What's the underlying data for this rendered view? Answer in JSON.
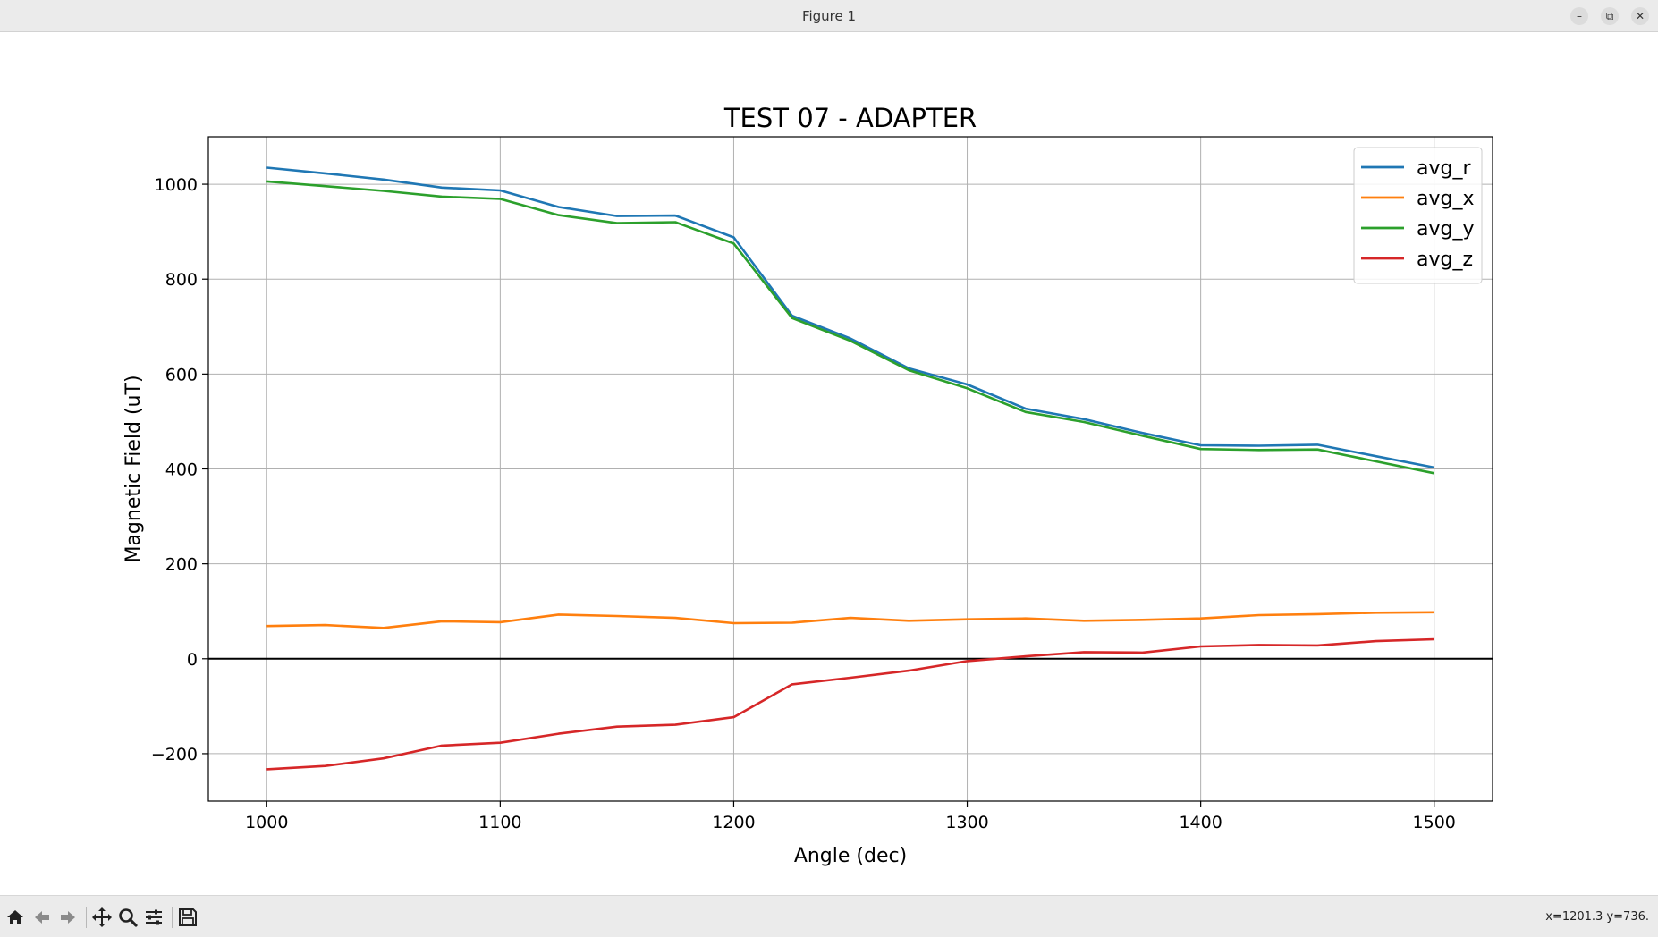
{
  "window": {
    "title": "Figure 1",
    "minimize_glyph": "–",
    "restore_glyph": "⧉",
    "close_glyph": "✕"
  },
  "toolbar": {
    "icons": [
      "home-icon",
      "back-arrow-icon",
      "forward-arrow-icon",
      "pan-icon",
      "zoom-icon",
      "configure-subplots-icon",
      "save-icon"
    ],
    "coords_text": "x=1201.3 y=736."
  },
  "chart_data": {
    "type": "line",
    "title": "TEST 07 - ADAPTER",
    "xlabel": "Angle (dec)",
    "ylabel": "Magnetic Field (uT)",
    "xlim": [
      975,
      1525
    ],
    "ylim": [
      -300,
      1100
    ],
    "xticks": [
      1000,
      1100,
      1200,
      1300,
      1400,
      1500
    ],
    "yticks": [
      -200,
      0,
      200,
      400,
      600,
      800,
      1000
    ],
    "grid": true,
    "zero_line": true,
    "legend_position": "top-right",
    "x": [
      1000,
      1025,
      1050,
      1075,
      1100,
      1125,
      1150,
      1175,
      1200,
      1225,
      1250,
      1275,
      1300,
      1325,
      1350,
      1375,
      1400,
      1425,
      1450,
      1475,
      1500
    ],
    "series": [
      {
        "name": "avg_r",
        "color": "#1f77b4",
        "values": [
          1035,
          1023,
          1010,
          993,
          987,
          952,
          933,
          934,
          888,
          723,
          675,
          612,
          578,
          527,
          505,
          476,
          450,
          449,
          451,
          427,
          403
        ]
      },
      {
        "name": "avg_x",
        "color": "#ff7f0e",
        "values": [
          69,
          71,
          65,
          79,
          77,
          93,
          90,
          86,
          75,
          76,
          86,
          80,
          83,
          85,
          80,
          82,
          85,
          92,
          94,
          97,
          98
        ]
      },
      {
        "name": "avg_y",
        "color": "#2ca02c",
        "values": [
          1006,
          996,
          986,
          974,
          969,
          935,
          918,
          920,
          875,
          718,
          670,
          608,
          570,
          520,
          499,
          470,
          442,
          440,
          441,
          416,
          391
        ]
      },
      {
        "name": "avg_z",
        "color": "#d62728",
        "values": [
          -233,
          -226,
          -210,
          -183,
          -177,
          -158,
          -143,
          -139,
          -123,
          -54,
          -40,
          -25,
          -5,
          5,
          14,
          13,
          26,
          29,
          28,
          37,
          41
        ]
      }
    ]
  }
}
